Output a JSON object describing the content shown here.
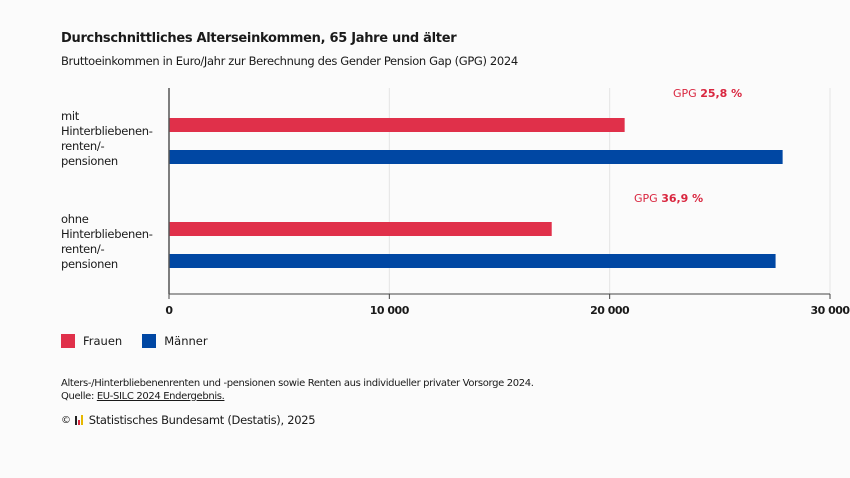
{
  "chart_data": {
    "type": "bar",
    "orientation": "horizontal",
    "title": "Durchschnittliches Alterseinkommen, 65 Jahre und älter",
    "subtitle": "Bruttoeinkommen in Euro/Jahr zur Berechnung des Gender Pension Gap (GPG) 2024",
    "categories": [
      [
        "mit",
        "Hinterbliebenen-",
        "renten/-",
        "pensionen"
      ],
      [
        "ohne",
        "Hinterbliebenen-",
        "renten/-",
        "pensionen"
      ]
    ],
    "series": [
      {
        "name": "Frauen",
        "color": "#e0304a",
        "values": [
          20680,
          17370
        ]
      },
      {
        "name": "Männer",
        "color": "#0047a3",
        "values": [
          27850,
          27530
        ]
      }
    ],
    "annotations": [
      {
        "prefix": "GPG",
        "value": "25,8 %"
      },
      {
        "prefix": "GPG",
        "value": "36,9 %"
      }
    ],
    "xlim": [
      0,
      30000
    ],
    "xticks": [
      0,
      10000,
      20000,
      30000
    ],
    "xtick_labels": [
      "0",
      "10 000",
      "20 000",
      "30 000"
    ],
    "grid": true,
    "legend_position": "bottom-left",
    "xlabel": "",
    "ylabel": ""
  },
  "legend": [
    {
      "label": "Frauen",
      "color": "#e0304a"
    },
    {
      "label": "Männer",
      "color": "#0047a3"
    }
  ],
  "footer": {
    "note": "Alters-/Hinterbliebenenrenten und -pensionen sowie Renten aus individueller privater Vorsorge 2024.",
    "source_prefix": "Quelle:",
    "source_link": "EU-SILC 2024 Endergebnis.",
    "copyright_symbol": "©",
    "copyright_text": "Statistisches Bundesamt (Destatis), 2025"
  }
}
